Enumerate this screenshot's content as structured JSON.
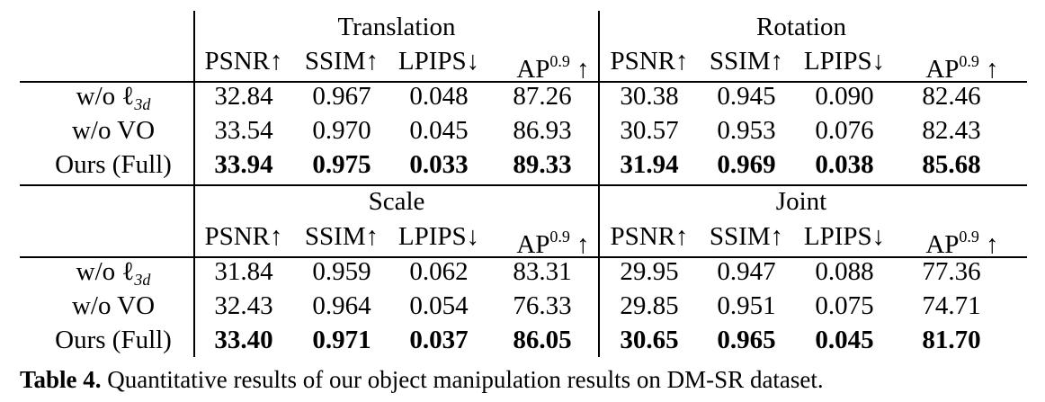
{
  "table": {
    "groups_top": [
      "Translation",
      "Rotation"
    ],
    "groups_bottom": [
      "Scale",
      "Joint"
    ],
    "metrics": [
      "PSNR↑",
      "SSIM↑",
      "LPIPS↓",
      "AP",
      "0.9",
      "↑"
    ],
    "row_labels": [
      "w/o ℓ",
      "3d",
      "w/o VO",
      "Ours (Full)"
    ],
    "top_rows": [
      [
        "32.84",
        "0.967",
        "0.048",
        "87.26",
        "30.38",
        "0.945",
        "0.090",
        "82.46"
      ],
      [
        "33.54",
        "0.970",
        "0.045",
        "86.93",
        "30.57",
        "0.953",
        "0.076",
        "82.43"
      ],
      [
        "33.94",
        "0.975",
        "0.033",
        "89.33",
        "31.94",
        "0.969",
        "0.038",
        "85.68"
      ]
    ],
    "bottom_rows": [
      [
        "31.84",
        "0.959",
        "0.062",
        "83.31",
        "29.95",
        "0.947",
        "0.088",
        "77.36"
      ],
      [
        "32.43",
        "0.964",
        "0.054",
        "76.33",
        "29.85",
        "0.951",
        "0.075",
        "74.71"
      ],
      [
        "33.40",
        "0.971",
        "0.037",
        "86.05",
        "30.65",
        "0.965",
        "0.045",
        "81.70"
      ]
    ]
  },
  "caption": {
    "label": "Table 4.",
    "text": " Quantitative results of our object manipulation results on DM-SR dataset."
  }
}
